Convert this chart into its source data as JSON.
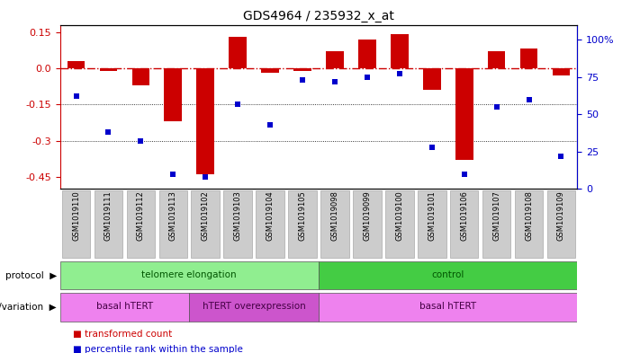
{
  "title": "GDS4964 / 235932_x_at",
  "samples": [
    "GSM1019110",
    "GSM1019111",
    "GSM1019112",
    "GSM1019113",
    "GSM1019102",
    "GSM1019103",
    "GSM1019104",
    "GSM1019105",
    "GSM1019098",
    "GSM1019099",
    "GSM1019100",
    "GSM1019101",
    "GSM1019106",
    "GSM1019107",
    "GSM1019108",
    "GSM1019109"
  ],
  "bar_values": [
    0.03,
    -0.01,
    -0.07,
    -0.22,
    -0.44,
    0.13,
    -0.02,
    -0.01,
    0.07,
    0.12,
    0.14,
    -0.09,
    -0.38,
    0.07,
    0.08,
    -0.03
  ],
  "dot_values": [
    62,
    38,
    32,
    10,
    8,
    57,
    43,
    73,
    72,
    75,
    77,
    28,
    10,
    55,
    60,
    22
  ],
  "bar_color": "#cc0000",
  "dot_color": "#0000cc",
  "zero_line_color": "#cc0000",
  "grid_color": "#000000",
  "ylim_left": [
    -0.5,
    0.18
  ],
  "ylim_right": [
    0,
    110
  ],
  "yticks_left": [
    0.15,
    0.0,
    -0.15,
    -0.3,
    -0.45
  ],
  "yticks_right": [
    100,
    75,
    50,
    25,
    0
  ],
  "hline_y": [
    0.0,
    -0.15,
    -0.3
  ],
  "protocol_groups": [
    {
      "label": "telomere elongation",
      "start": 0,
      "end": 8,
      "color": "#90ee90"
    },
    {
      "label": "control",
      "start": 8,
      "end": 16,
      "color": "#44cc44"
    }
  ],
  "genotype_groups": [
    {
      "label": "basal hTERT",
      "start": 0,
      "end": 4,
      "color": "#ee82ee"
    },
    {
      "label": "hTERT overexpression",
      "start": 4,
      "end": 8,
      "color": "#cc55cc"
    },
    {
      "label": "basal hTERT",
      "start": 8,
      "end": 16,
      "color": "#ee82ee"
    }
  ],
  "legend_items": [
    {
      "color": "#cc0000",
      "label": "transformed count"
    },
    {
      "color": "#0000cc",
      "label": "percentile rank within the sample"
    }
  ],
  "bg_color": "#ffffff",
  "tick_label_color_left": "#cc0000",
  "tick_label_color_right": "#0000cc",
  "sample_box_color": "#cccccc",
  "sample_box_edge": "#aaaaaa"
}
